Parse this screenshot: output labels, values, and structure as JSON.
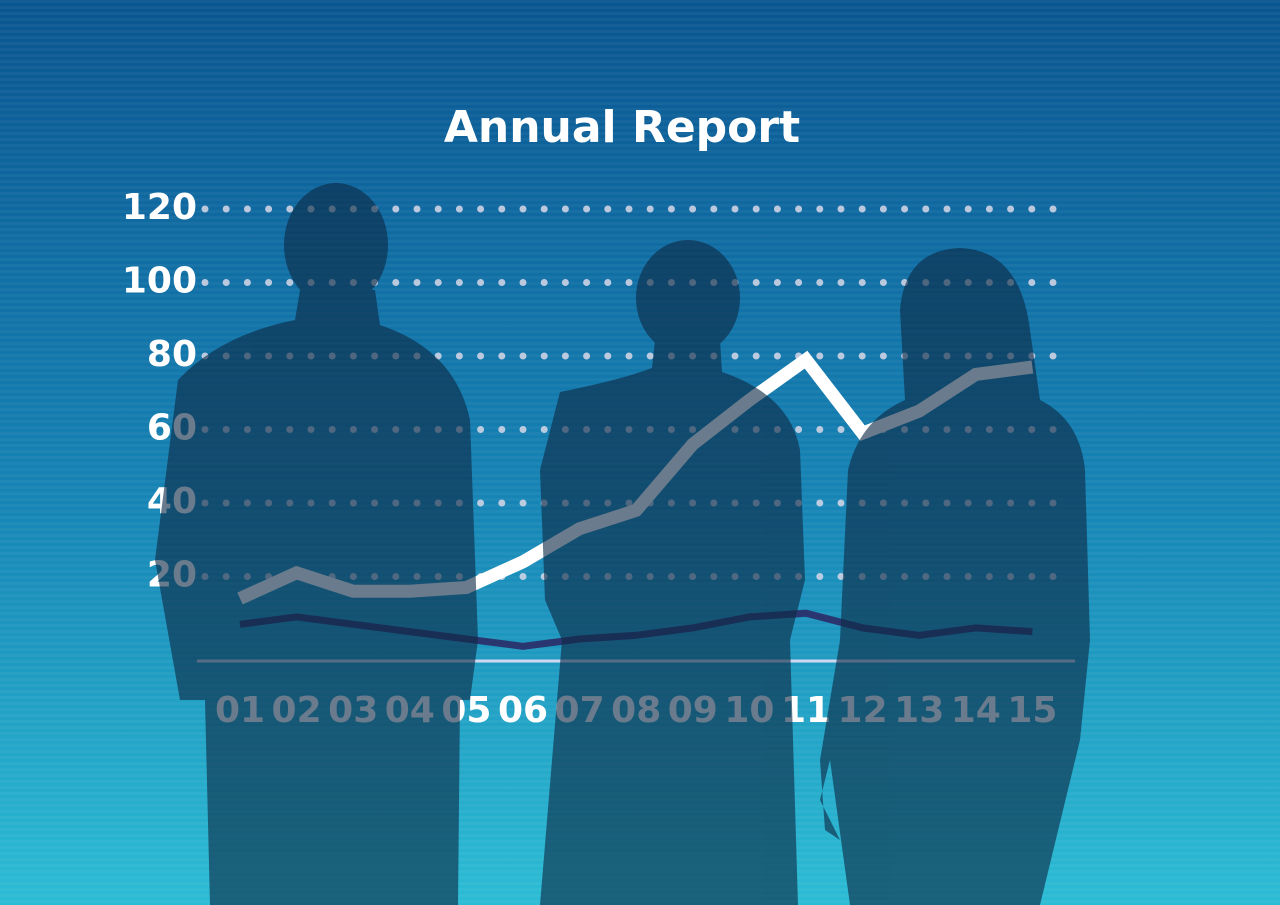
{
  "chart_data": {
    "type": "line",
    "title": "Annual Report",
    "categories": [
      "01",
      "02",
      "03",
      "04",
      "05",
      "06",
      "07",
      "08",
      "09",
      "10",
      "11",
      "12",
      "13",
      "14",
      "15"
    ],
    "series": [
      {
        "color": "#ffffff",
        "values": [
          14,
          21,
          16,
          16,
          17,
          24,
          33,
          38,
          56,
          68,
          79,
          59,
          65,
          75,
          77
        ]
      },
      {
        "color": "#2a3670",
        "values": [
          7,
          9,
          7,
          5,
          3,
          1,
          3,
          4,
          6,
          9,
          10,
          6,
          4,
          6,
          5
        ]
      }
    ],
    "ylim": [
      -3,
      120
    ],
    "yticks": [
      20,
      40,
      60,
      80,
      100,
      120
    ],
    "grid": true
  }
}
